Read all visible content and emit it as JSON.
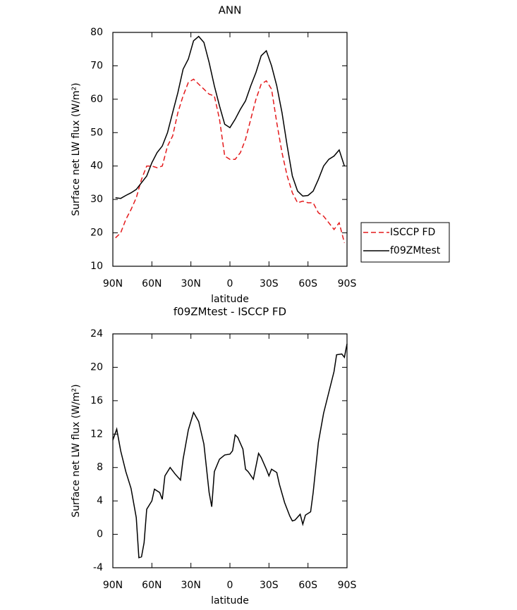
{
  "chart_data": [
    {
      "type": "line",
      "title": "ANN",
      "xlabel": "latitude",
      "ylabel": "Surface net LW flux (W/m²)",
      "x": [
        88,
        84,
        80,
        76,
        72,
        68,
        64,
        60,
        56,
        52,
        48,
        44,
        40,
        36,
        32,
        28,
        24,
        20,
        16,
        12,
        8,
        4,
        0,
        -4,
        -8,
        -12,
        -16,
        -20,
        -24,
        -28,
        -32,
        -36,
        -40,
        -44,
        -48,
        -52,
        -56,
        -60,
        -64,
        -68,
        -72,
        -76,
        -80,
        -84,
        -88
      ],
      "series": [
        {
          "name": "ISCCP FD",
          "color": "#e41a1c",
          "line_style": "dashed",
          "values": [
            18.5,
            20,
            24,
            27,
            30.5,
            36,
            40,
            40,
            39.5,
            40,
            46,
            49,
            56,
            61,
            65,
            66,
            64.5,
            63,
            61.5,
            61,
            54,
            43,
            42,
            42,
            44,
            48,
            54,
            60,
            64.5,
            65.5,
            63,
            53,
            44,
            37,
            32,
            29,
            29.5,
            29,
            29,
            26,
            25,
            23,
            21,
            23,
            17
          ]
        },
        {
          "name": "f09ZMtest",
          "color": "#000000",
          "line_style": "solid",
          "values": [
            30.5,
            30.3,
            31.2,
            32,
            33,
            35,
            37,
            41,
            44,
            46,
            50,
            56,
            62,
            69,
            72,
            77.5,
            78.8,
            77,
            71,
            64,
            58,
            52.5,
            51.5,
            54,
            57,
            59.5,
            64,
            68,
            73,
            74.5,
            70,
            64,
            56,
            46,
            37,
            32.5,
            31,
            31.2,
            32.5,
            36,
            40,
            42,
            43,
            44.8,
            40
          ]
        }
      ],
      "xlim": [
        90,
        -90
      ],
      "xticks": [
        {
          "value": 90,
          "label": "90N"
        },
        {
          "value": 60,
          "label": "60N"
        },
        {
          "value": 30,
          "label": "30N"
        },
        0,
        {
          "value": -30,
          "label": "30S"
        },
        {
          "value": -60,
          "label": "60S"
        },
        {
          "value": -90,
          "label": "90S"
        }
      ],
      "ylim": [
        10,
        80
      ],
      "yticks": [
        10,
        20,
        30,
        40,
        50,
        60,
        70,
        80
      ],
      "legend": "right"
    },
    {
      "type": "line",
      "title": "f09ZMtest - ISCCP FD",
      "xlabel": "latitude",
      "ylabel": "Surface net LW flux (W/m²)",
      "x": [
        90,
        87,
        84,
        80,
        76,
        72,
        70,
        68,
        66,
        64,
        60,
        58,
        54,
        52,
        50,
        46,
        42,
        38,
        36,
        32,
        28,
        24,
        20,
        16,
        14,
        12,
        8,
        4,
        0,
        -2,
        -4,
        -6,
        -10,
        -12,
        -14,
        -18,
        -22,
        -24,
        -28,
        -30,
        -32,
        -36,
        -38,
        -42,
        -46,
        -48,
        -50,
        -54,
        -56,
        -58,
        -62,
        -64,
        -68,
        -72,
        -76,
        -80,
        -82,
        -86,
        -88,
        -90
      ],
      "values": [
        11.3,
        12.6,
        10,
        7.5,
        5.5,
        2,
        -2.8,
        -2.7,
        -1,
        3,
        4,
        5.4,
        5,
        4.2,
        7,
        8,
        7.2,
        6.5,
        9,
        12.5,
        14.6,
        13.5,
        10.8,
        5,
        3.3,
        7.5,
        9,
        9.5,
        9.6,
        10,
        11.9,
        11.6,
        10.2,
        7.8,
        7.5,
        6.6,
        9.7,
        9.2,
        7.8,
        7,
        7.8,
        7.4,
        6,
        3.8,
        2.2,
        1.6,
        1.7,
        2.4,
        1.2,
        2.3,
        2.7,
        5,
        11,
        14.5,
        17,
        19.5,
        21.5,
        21.6,
        21.2,
        22.8
      ],
      "color": "#000000",
      "xlim": [
        90,
        -90
      ],
      "xticks": [
        {
          "value": 90,
          "label": "90N"
        },
        {
          "value": 60,
          "label": "60N"
        },
        {
          "value": 30,
          "label": "30N"
        },
        0,
        {
          "value": -30,
          "label": "30S"
        },
        {
          "value": -60,
          "label": "60S"
        },
        {
          "value": -90,
          "label": "90S"
        }
      ],
      "ylim": [
        -4,
        24
      ],
      "yticks": [
        -4,
        0,
        4,
        8,
        12,
        16,
        20,
        24
      ]
    }
  ]
}
